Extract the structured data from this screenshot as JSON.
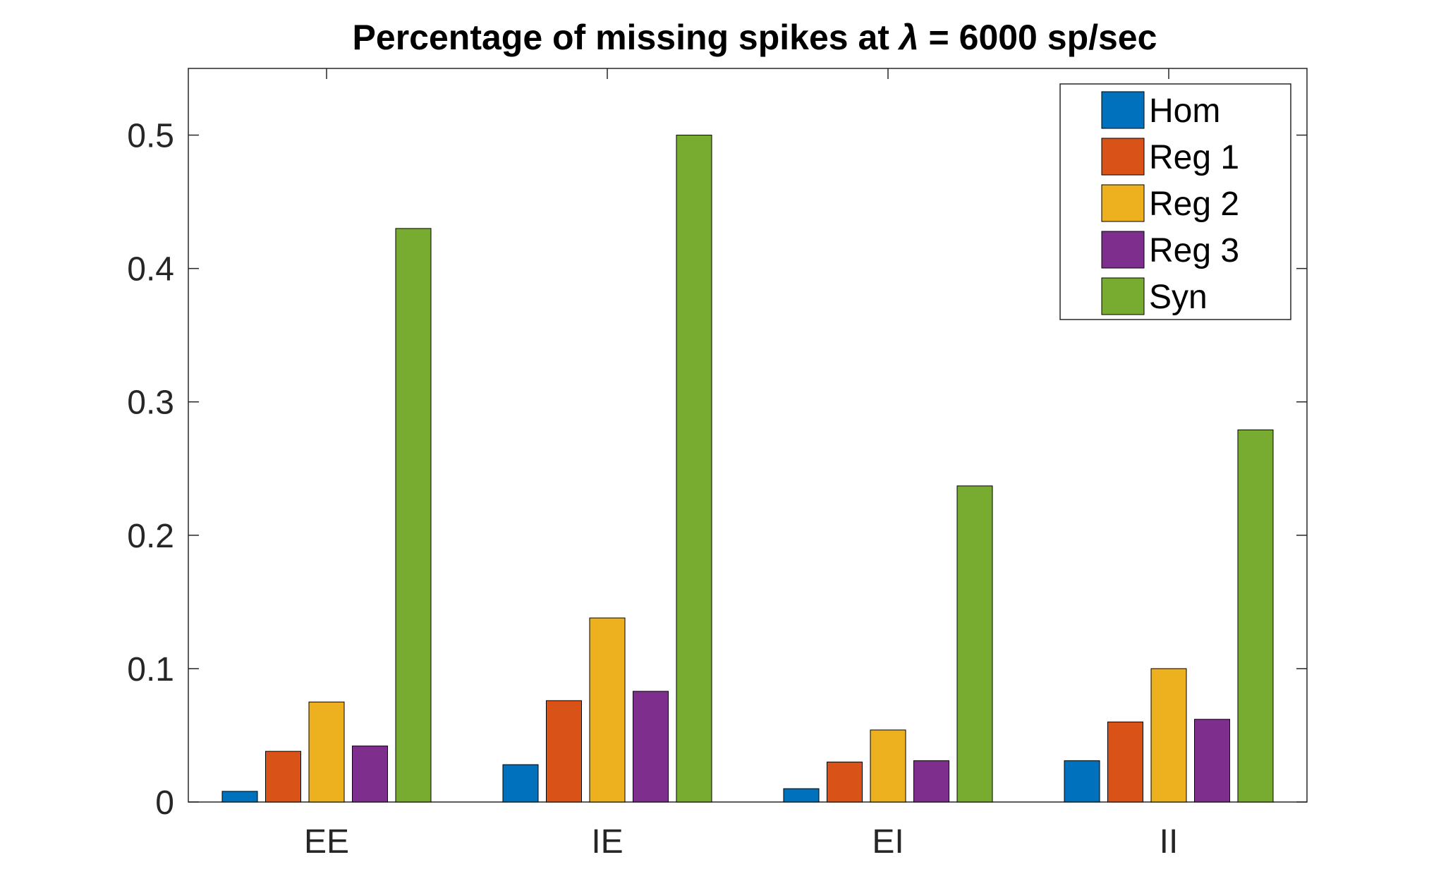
{
  "chart_data": {
    "type": "bar",
    "title_prefix": "Percentage of missing spikes at ",
    "title_symbol": "λ",
    "title_suffix": " = 6000 sp/sec",
    "xlabel": "",
    "ylabel": "",
    "categories": [
      "EE",
      "IE",
      "EI",
      "II"
    ],
    "ylim": [
      0,
      0.55
    ],
    "yticks": [
      0,
      0.1,
      0.2,
      0.3,
      0.4,
      0.5
    ],
    "ytick_labels": [
      "0",
      "0.1",
      "0.2",
      "0.3",
      "0.4",
      "0.5"
    ],
    "grid": false,
    "legend_position": "top-right",
    "series": [
      {
        "name": "Hom",
        "color": "#0072BD",
        "values": [
          0.008,
          0.028,
          0.01,
          0.031
        ]
      },
      {
        "name": "Reg 1",
        "color": "#D95319",
        "values": [
          0.038,
          0.076,
          0.03,
          0.06
        ]
      },
      {
        "name": "Reg 2",
        "color": "#EDB120",
        "values": [
          0.075,
          0.138,
          0.054,
          0.1
        ]
      },
      {
        "name": "Reg 3",
        "color": "#7E2F8E",
        "values": [
          0.042,
          0.083,
          0.031,
          0.062
        ]
      },
      {
        "name": "Syn",
        "color": "#77AC30",
        "values": [
          0.43,
          0.5,
          0.237,
          0.279
        ]
      }
    ]
  }
}
